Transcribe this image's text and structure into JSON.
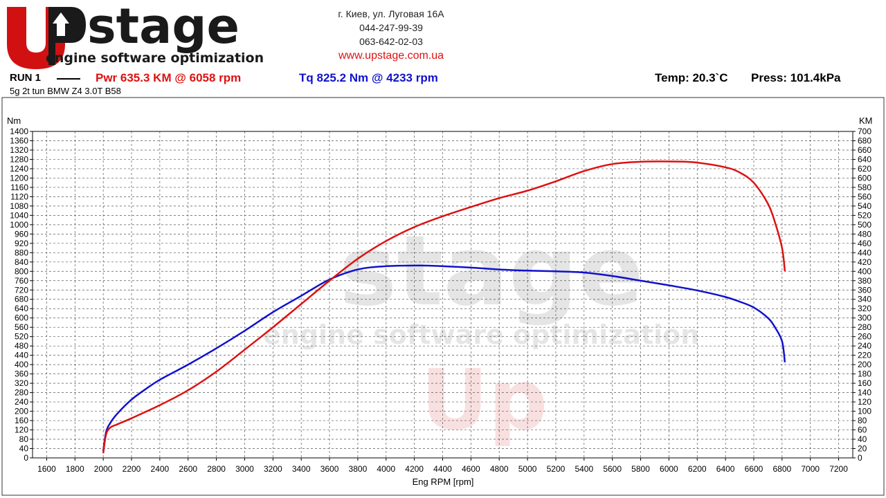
{
  "header": {
    "logo_big": "stage",
    "logo_tagline": "engine software optimization",
    "address": "г. Киев, ул. Луговая 16А",
    "phone1": "044-247-99-39",
    "phone2": "063-642-02-03",
    "website": "www.upstage.com.ua"
  },
  "run": {
    "label": "RUN 1",
    "power_text": "Pwr  635.3 KM @ 6058 rpm",
    "torque_text": "Tq 825.2 Nm @ 4233 rpm",
    "temp_text": "Temp: 20.3`C",
    "press_text": "Press: 101.4kPa",
    "vehicle": "5g 2t tun BMW Z4 3.0T B58"
  },
  "colors": {
    "power": "#dd1111",
    "torque": "#1111cc",
    "accent": "#d11111"
  },
  "chart_data": {
    "type": "line",
    "xlabel": "Eng RPM [rpm]",
    "ylabel_left": "Nm",
    "ylabel_right": "KM",
    "xlim": [
      1500,
      7300
    ],
    "ylim_left": [
      0,
      1400
    ],
    "ylim_right": [
      0,
      700
    ],
    "x_ticks": [
      1600,
      1800,
      2000,
      2200,
      2400,
      2600,
      2800,
      3000,
      3200,
      3400,
      3600,
      3800,
      4000,
      4200,
      4400,
      4600,
      4800,
      5000,
      5200,
      5400,
      5600,
      5800,
      6000,
      6200,
      6400,
      6600,
      6800,
      7000,
      7200
    ],
    "grid": true,
    "series": [
      {
        "axis": "left",
        "color": "#1111cc",
        "x": [
          2000,
          2020,
          2050,
          2100,
          2200,
          2300,
          2400,
          2600,
          2800,
          3000,
          3200,
          3400,
          3600,
          3800,
          4000,
          4233,
          4400,
          4600,
          4800,
          5000,
          5200,
          5400,
          5600,
          5800,
          6000,
          6200,
          6400,
          6500,
          6600,
          6700,
          6750,
          6800,
          6820
        ],
        "values": [
          30,
          110,
          150,
          190,
          250,
          295,
          335,
          400,
          470,
          545,
          625,
          695,
          765,
          808,
          822,
          825,
          822,
          816,
          808,
          803,
          800,
          795,
          780,
          760,
          740,
          718,
          690,
          670,
          645,
          600,
          560,
          500,
          410
        ]
      },
      {
        "axis": "right",
        "color": "#dd1111",
        "x": [
          2000,
          2020,
          2050,
          2100,
          2200,
          2400,
          2600,
          2800,
          3000,
          3200,
          3400,
          3600,
          3800,
          4000,
          4200,
          4400,
          4600,
          4800,
          5000,
          5200,
          5400,
          5600,
          5800,
          6058,
          6200,
          6400,
          6500,
          6600,
          6700,
          6750,
          6800,
          6820
        ],
        "values": [
          10,
          50,
          65,
          72,
          85,
          113,
          145,
          185,
          232,
          280,
          330,
          380,
          427,
          465,
          495,
          518,
          538,
          557,
          573,
          593,
          615,
          630,
          635,
          635.3,
          633,
          623,
          612,
          590,
          545,
          505,
          450,
          400
        ]
      }
    ]
  }
}
